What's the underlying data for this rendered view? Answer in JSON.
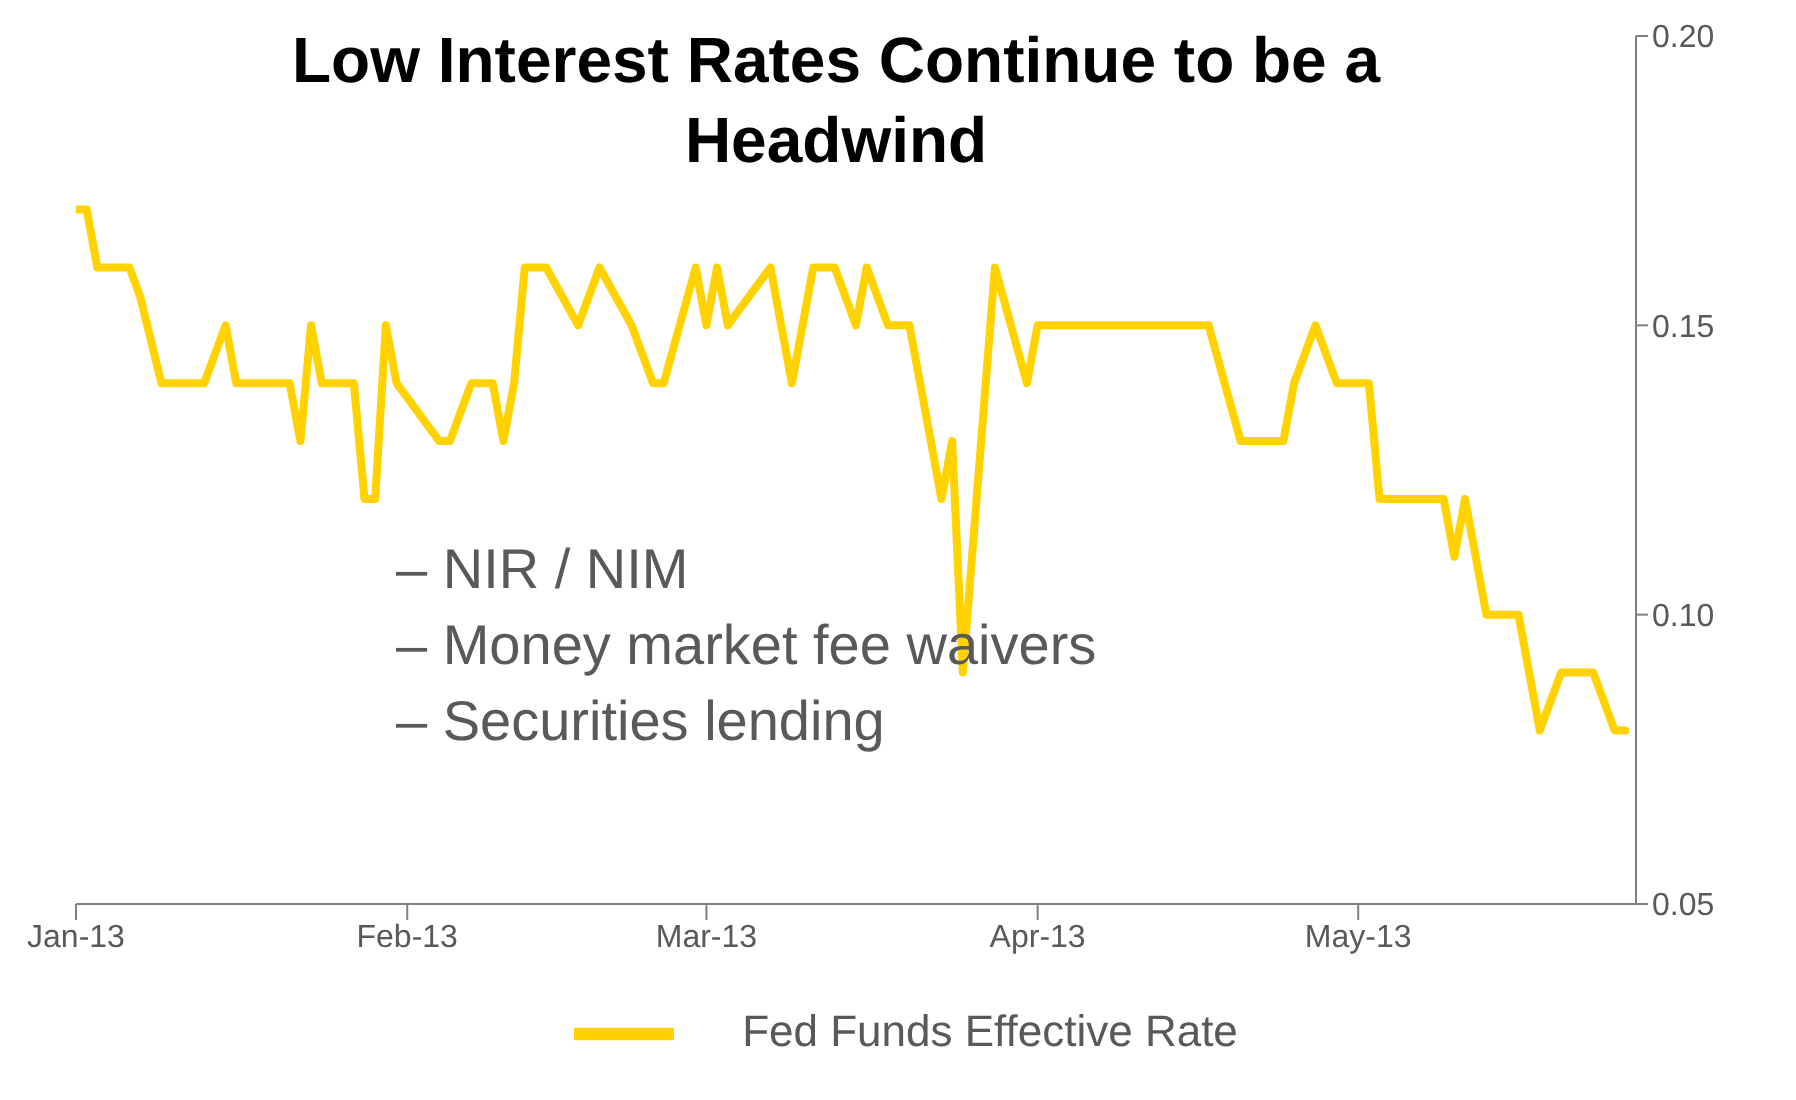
{
  "chart_data": {
    "type": "line",
    "title": "Low Interest Rates Continue to be a Headwind",
    "annotations": [
      "– NIR / NIM",
      "– Money market fee waivers",
      "– Securities lending"
    ],
    "x": [
      "2013-01-01",
      "2013-01-02",
      "2013-01-03",
      "2013-01-05",
      "2013-01-06",
      "2013-01-07",
      "2013-01-09",
      "2013-01-13",
      "2013-01-15",
      "2013-01-16",
      "2013-01-21",
      "2013-01-22",
      "2013-01-23",
      "2013-01-24",
      "2013-01-27",
      "2013-01-28",
      "2013-01-29",
      "2013-01-30",
      "2013-01-31",
      "2013-02-04",
      "2013-02-05",
      "2013-02-07",
      "2013-02-09",
      "2013-02-10",
      "2013-02-11",
      "2013-02-12",
      "2013-02-14",
      "2013-02-17",
      "2013-02-19",
      "2013-02-22",
      "2013-02-24",
      "2013-02-25",
      "2013-02-28",
      "2013-03-01",
      "2013-03-02",
      "2013-03-03",
      "2013-03-07",
      "2013-03-09",
      "2013-03-11",
      "2013-03-13",
      "2013-03-15",
      "2013-03-16",
      "2013-03-18",
      "2013-03-20",
      "2013-03-22",
      "2013-03-23",
      "2013-03-24",
      "2013-03-25",
      "2013-03-28",
      "2013-03-31",
      "2013-04-01",
      "2013-04-02",
      "2013-04-17",
      "2013-04-20",
      "2013-04-24",
      "2013-04-25",
      "2013-04-27",
      "2013-04-29",
      "2013-05-02",
      "2013-05-03",
      "2013-05-09",
      "2013-05-10",
      "2013-05-11",
      "2013-05-13",
      "2013-05-16",
      "2013-05-18",
      "2013-05-20",
      "2013-05-23",
      "2013-05-25",
      "2013-05-26"
    ],
    "series": [
      {
        "name": "Fed Funds Effective Rate",
        "color": "#ffd200",
        "values": [
          0.17,
          0.17,
          0.16,
          0.16,
          0.16,
          0.155,
          0.14,
          0.14,
          0.15,
          0.14,
          0.14,
          0.13,
          0.15,
          0.14,
          0.14,
          0.12,
          0.12,
          0.15,
          0.14,
          0.13,
          0.13,
          0.14,
          0.14,
          0.13,
          0.14,
          0.16,
          0.16,
          0.15,
          0.16,
          0.15,
          0.14,
          0.14,
          0.16,
          0.15,
          0.16,
          0.15,
          0.16,
          0.14,
          0.16,
          0.16,
          0.15,
          0.16,
          0.15,
          0.15,
          0.13,
          0.12,
          0.13,
          0.09,
          0.16,
          0.14,
          0.15,
          0.15,
          0.15,
          0.13,
          0.13,
          0.14,
          0.15,
          0.14,
          0.14,
          0.12,
          0.12,
          0.11,
          0.12,
          0.1,
          0.1,
          0.08,
          0.09,
          0.09,
          0.08,
          0.08
        ]
      }
    ],
    "xlim": [
      "2013-01-01",
      "2013-05-27"
    ],
    "xticks": [
      {
        "value": "2013-01-01",
        "label": "Jan-13"
      },
      {
        "value": "2013-02-01",
        "label": "Feb-13"
      },
      {
        "value": "2013-03-01",
        "label": "Mar-13"
      },
      {
        "value": "2013-04-01",
        "label": "Apr-13"
      },
      {
        "value": "2013-05-01",
        "label": "May-13"
      }
    ],
    "ylim": [
      0.05,
      0.2
    ],
    "yticks": [
      0.05,
      {
        "value": 0.1,
        "label": "0.10"
      },
      0.15,
      {
        "value": 0.2,
        "label": "0.20"
      }
    ],
    "grid": false,
    "legend": "bottom",
    "marker": "none",
    "line_style": "solid"
  }
}
